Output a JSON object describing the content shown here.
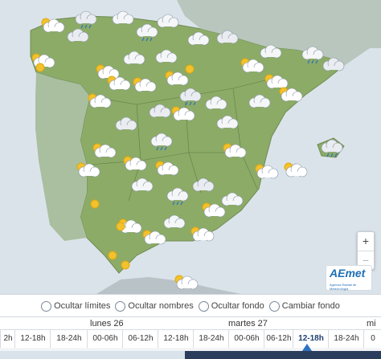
{
  "controls": {
    "hide_limits": "Ocultar límites",
    "hide_names": "Ocultar nombres",
    "hide_background": "Ocultar fondo",
    "change_background": "Cambiar fondo"
  },
  "zoom": {
    "in": "+",
    "out": "−"
  },
  "logo": {
    "name": "AEmet",
    "subtitle": "Agencia Estatal de Meteorología"
  },
  "timeline": {
    "days": {
      "d1": "lunes 26",
      "d2": "martes 27",
      "d3": "mi"
    },
    "slots": [
      "2h",
      "12-18h",
      "18-24h",
      "00-06h",
      "06-12h",
      "12-18h",
      "18-24h",
      "00-06h",
      "06-12h",
      "12-18h",
      "18-24h",
      "0"
    ],
    "active_slot": "12-18h"
  },
  "colors": {
    "land": "#8cab67",
    "sea": "#dbe3ea",
    "timeline_dark": "#2b3d5d",
    "marker": "#2e73c0"
  },
  "weather_icons": [
    "partly-cloudy",
    "cloud",
    "sun",
    "rain",
    "storm"
  ]
}
